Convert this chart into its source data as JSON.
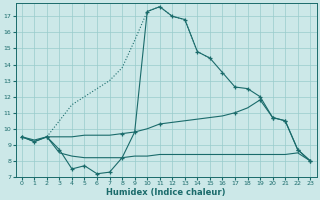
{
  "xlabel": "Humidex (Indice chaleur)",
  "xlim": [
    -0.5,
    23.5
  ],
  "ylim": [
    7,
    17.8
  ],
  "yticks": [
    7,
    8,
    9,
    10,
    11,
    12,
    13,
    14,
    15,
    16,
    17
  ],
  "xticks": [
    0,
    1,
    2,
    3,
    4,
    5,
    6,
    7,
    8,
    9,
    10,
    11,
    12,
    13,
    14,
    15,
    16,
    17,
    18,
    19,
    20,
    21,
    22,
    23
  ],
  "bg_color": "#cce8e8",
  "grid_color": "#99cccc",
  "line_color": "#1a6b6b",
  "curve_main_x": [
    0,
    1,
    2,
    3,
    4,
    5,
    6,
    7,
    8,
    9,
    10,
    11,
    12,
    13,
    14,
    15,
    16,
    17,
    18,
    19,
    20,
    21,
    22,
    23
  ],
  "curve_main_y": [
    9.5,
    9.2,
    9.5,
    8.7,
    7.5,
    7.7,
    7.2,
    7.3,
    8.2,
    9.8,
    17.3,
    17.6,
    17.0,
    16.8,
    14.8,
    14.4,
    13.5,
    12.6,
    12.5,
    12.0,
    10.7,
    10.5,
    8.7,
    8.0
  ],
  "curve_dotted_x": [
    2,
    3,
    4,
    5,
    6,
    7,
    8,
    9,
    10,
    11,
    12,
    13,
    14,
    15
  ],
  "curve_dotted_y": [
    9.5,
    10.5,
    11.5,
    12.0,
    12.5,
    13.0,
    13.8,
    15.5,
    17.3,
    17.6,
    17.0,
    16.8,
    14.8,
    14.4
  ],
  "curve_flat_x": [
    0,
    1,
    2,
    3,
    4,
    5,
    6,
    7,
    8,
    9,
    10,
    11,
    12,
    13,
    14,
    15,
    16,
    17,
    18,
    19,
    20,
    21,
    22,
    23
  ],
  "curve_flat_y": [
    9.5,
    9.2,
    9.5,
    8.5,
    8.3,
    8.2,
    8.2,
    8.2,
    8.2,
    8.3,
    8.3,
    8.4,
    8.4,
    8.4,
    8.4,
    8.4,
    8.4,
    8.4,
    8.4,
    8.4,
    8.4,
    8.4,
    8.5,
    8.0
  ],
  "curve_diag_x": [
    0,
    1,
    2,
    3,
    4,
    5,
    6,
    7,
    8,
    9,
    10,
    11,
    12,
    13,
    14,
    15,
    16,
    17,
    18,
    19,
    20,
    21,
    22,
    23
  ],
  "curve_diag_y": [
    9.5,
    9.3,
    9.5,
    9.5,
    9.5,
    9.6,
    9.6,
    9.6,
    9.7,
    9.8,
    10.0,
    10.3,
    10.4,
    10.5,
    10.6,
    10.7,
    10.8,
    11.0,
    11.3,
    11.8,
    10.7,
    10.5,
    8.7,
    8.0
  ]
}
